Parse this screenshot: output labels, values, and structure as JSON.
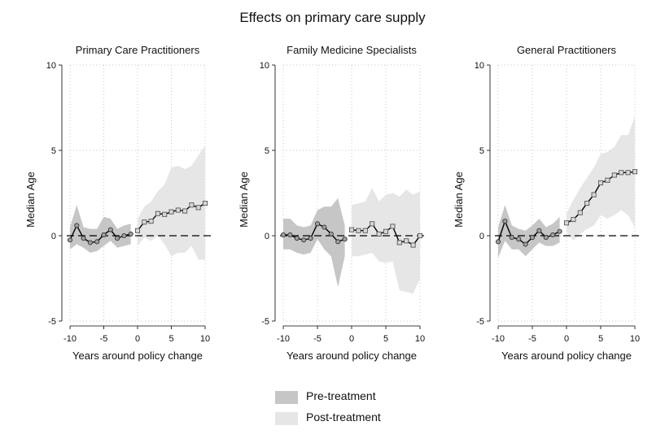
{
  "title": "Effects on primary care supply",
  "colors": {
    "pre_band": "#c6c6c6",
    "post_band": "#e6e6e6",
    "line": "#000000",
    "marker_fill": "#a0a0a0",
    "grid": "#c8c8c8"
  },
  "legend": {
    "pre": "Pre-treatment",
    "post": "Post-treatment"
  },
  "chart_data": [
    {
      "type": "line",
      "title": "Primary Care Practitioners",
      "xlabel": "Years around policy change",
      "ylabel": "Median Age",
      "xlim": [
        -10,
        10
      ],
      "ylim": [
        -5,
        10
      ],
      "xticks": [
        -10,
        -5,
        0,
        5,
        10
      ],
      "yticks": [
        -5,
        0,
        5,
        10
      ],
      "reference_line": 0,
      "pre": {
        "x": [
          -10,
          -9,
          -8,
          -7,
          -6,
          -5,
          -4,
          -3,
          -2,
          -1
        ],
        "y": [
          -0.25,
          0.6,
          -0.15,
          -0.4,
          -0.35,
          0.05,
          0.35,
          -0.15,
          0.0,
          0.1
        ],
        "lower": [
          -0.8,
          -0.5,
          -0.7,
          -1.0,
          -0.9,
          -0.6,
          -0.3,
          -0.7,
          -0.6,
          -0.5
        ],
        "upper": [
          0.5,
          1.8,
          0.5,
          0.4,
          0.4,
          1.1,
          1.0,
          0.4,
          0.6,
          0.7
        ]
      },
      "post": {
        "x": [
          0,
          1,
          2,
          3,
          4,
          5,
          6,
          7,
          8,
          9,
          10
        ],
        "y": [
          0.3,
          0.8,
          0.85,
          1.3,
          1.25,
          1.4,
          1.5,
          1.45,
          1.8,
          1.65,
          1.9
        ],
        "lower": [
          -0.6,
          -0.1,
          -0.3,
          0.0,
          -0.5,
          -1.2,
          -1.0,
          -1.0,
          -0.6,
          -1.4,
          -1.4
        ],
        "upper": [
          1.0,
          1.7,
          2.0,
          2.6,
          3.0,
          4.0,
          4.1,
          3.9,
          4.1,
          4.7,
          5.3
        ]
      }
    },
    {
      "type": "line",
      "title": "Family Medicine Specialists",
      "xlabel": "Years around policy change",
      "ylabel": "Median Age",
      "xlim": [
        -10,
        10
      ],
      "ylim": [
        -5,
        10
      ],
      "xticks": [
        -10,
        -5,
        0,
        5,
        10
      ],
      "yticks": [
        -5,
        0,
        5,
        10
      ],
      "reference_line": 0,
      "pre": {
        "x": [
          -10,
          -9,
          -8,
          -7,
          -6,
          -5,
          -4,
          -3,
          -2,
          -1
        ],
        "y": [
          0.05,
          0.05,
          -0.15,
          -0.25,
          -0.15,
          0.7,
          0.5,
          0.1,
          -0.35,
          -0.2
        ],
        "lower": [
          -0.8,
          -0.8,
          -1.0,
          -1.1,
          -1.0,
          -0.2,
          -0.8,
          -1.2,
          -3.0,
          -1.2
        ],
        "upper": [
          1.0,
          1.0,
          0.6,
          0.5,
          0.6,
          1.5,
          1.7,
          1.7,
          2.2,
          0.6
        ]
      },
      "post": {
        "x": [
          0,
          1,
          2,
          3,
          4,
          5,
          6,
          7,
          8,
          9,
          10
        ],
        "y": [
          0.35,
          0.3,
          0.3,
          0.7,
          0.1,
          0.25,
          0.55,
          -0.4,
          -0.3,
          -0.55,
          0.0
        ],
        "lower": [
          -1.2,
          -1.2,
          -1.1,
          -1.0,
          -1.5,
          -1.6,
          -1.5,
          -3.2,
          -3.3,
          -3.4,
          -2.5
        ],
        "upper": [
          1.8,
          1.9,
          2.0,
          2.8,
          2.0,
          2.4,
          2.5,
          2.3,
          2.7,
          2.4,
          2.6
        ]
      }
    },
    {
      "type": "line",
      "title": "General Practitioners",
      "xlabel": "Years around policy change",
      "ylabel": "Median Age",
      "xlim": [
        -10,
        10
      ],
      "ylim": [
        -5,
        10
      ],
      "xticks": [
        -10,
        -5,
        0,
        5,
        10
      ],
      "yticks": [
        -5,
        0,
        5,
        10
      ],
      "reference_line": 0,
      "pre": {
        "x": [
          -10,
          -9,
          -8,
          -7,
          -6,
          -5,
          -4,
          -3,
          -2,
          -1
        ],
        "y": [
          -0.35,
          0.85,
          -0.1,
          -0.2,
          -0.5,
          -0.1,
          0.3,
          -0.1,
          0.05,
          0.25
        ],
        "lower": [
          -1.3,
          -0.3,
          -0.8,
          -0.8,
          -1.2,
          -0.8,
          -0.4,
          -0.6,
          -0.6,
          -0.4
        ],
        "upper": [
          0.5,
          1.8,
          0.6,
          0.4,
          0.3,
          0.6,
          1.0,
          0.5,
          0.7,
          1.1
        ]
      },
      "post": {
        "x": [
          0,
          1,
          2,
          3,
          4,
          5,
          6,
          7,
          8,
          9,
          10
        ],
        "y": [
          0.75,
          0.95,
          1.35,
          1.9,
          2.4,
          3.1,
          3.25,
          3.55,
          3.7,
          3.7,
          3.75
        ],
        "lower": [
          0.2,
          -0.3,
          0.1,
          0.4,
          0.6,
          1.2,
          1.0,
          1.2,
          1.5,
          1.2,
          0.5
        ],
        "upper": [
          1.3,
          2.1,
          2.8,
          3.4,
          4.0,
          4.8,
          4.9,
          5.2,
          5.9,
          5.9,
          7.0
        ]
      }
    }
  ]
}
